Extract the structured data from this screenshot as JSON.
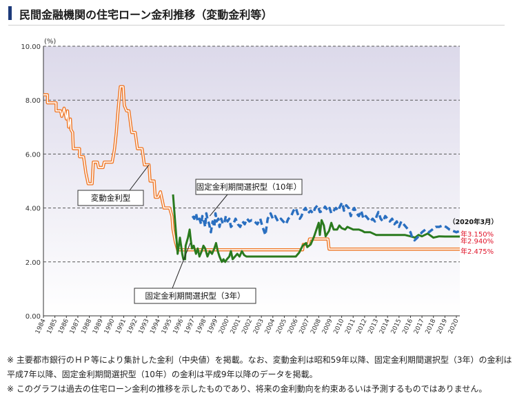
{
  "page": {
    "title": "民間金融機関の住宅ローン金利推移（変動金利等）",
    "notes": [
      "※ 主要都市銀行のＨＰ等により集計した金利（中央値）を掲載。なお、変動金利は昭和59年以降、固定金利期間選択型（3年）の金利は平成7年以降、固定金利期間選択型（10年）の金利は平成9年以降のデータを掲載。",
      "※ このグラフは過去の住宅ローン金利の推移を示したものであり、将来の金利動向を約束あるいは予測するものではありません。"
    ]
  },
  "chart_data": {
    "type": "line",
    "ylabel": "(%)",
    "ylim": [
      0,
      10
    ],
    "yticks": [
      "0.00",
      "2.00",
      "4.00",
      "6.00",
      "8.00",
      "10.00"
    ],
    "xlim": [
      1984,
      2020.3
    ],
    "xticks": [
      "1984",
      "1985",
      "1986",
      "1987",
      "1988",
      "1989",
      "1990",
      "1991",
      "1992",
      "1993",
      "1994",
      "1995",
      "1996",
      "1997",
      "1998",
      "1999",
      "2000",
      "2001",
      "2002",
      "2003",
      "2004",
      "2005",
      "2006",
      "2007",
      "2008",
      "2009",
      "2010",
      "2011",
      "2012",
      "2013",
      "2014",
      "2015",
      "2016",
      "2017",
      "2018",
      "2019",
      "2020"
    ],
    "grid": true,
    "annotation_date": "（2020年3月）",
    "series": [
      {
        "name": "変動金利型",
        "color": "#f07a2a",
        "style": "double",
        "end_label": "年2.475%",
        "points": [
          [
            1984.0,
            8.2
          ],
          [
            1984.35,
            8.2
          ],
          [
            1984.35,
            7.9
          ],
          [
            1985.1,
            7.9
          ],
          [
            1985.1,
            7.6
          ],
          [
            1985.5,
            7.6
          ],
          [
            1985.6,
            7.4
          ],
          [
            1985.8,
            7.7
          ],
          [
            1986.0,
            7.3
          ],
          [
            1986.1,
            7.6
          ],
          [
            1986.2,
            7.0
          ],
          [
            1986.35,
            7.3
          ],
          [
            1986.4,
            6.9
          ],
          [
            1986.55,
            6.8
          ],
          [
            1986.6,
            6.2
          ],
          [
            1987.15,
            6.2
          ],
          [
            1987.15,
            5.9
          ],
          [
            1987.5,
            5.9
          ],
          [
            1987.7,
            5.3
          ],
          [
            1987.9,
            4.9
          ],
          [
            1988.25,
            4.9
          ],
          [
            1988.35,
            5.7
          ],
          [
            1988.7,
            5.7
          ],
          [
            1988.8,
            5.5
          ],
          [
            1989.2,
            5.5
          ],
          [
            1989.3,
            5.7
          ],
          [
            1990.0,
            5.7
          ],
          [
            1990.2,
            6.2
          ],
          [
            1990.35,
            6.8
          ],
          [
            1990.5,
            7.6
          ],
          [
            1990.7,
            8.5
          ],
          [
            1990.95,
            8.5
          ],
          [
            1991.05,
            7.8
          ],
          [
            1991.25,
            7.6
          ],
          [
            1991.45,
            7.6
          ],
          [
            1991.7,
            6.8
          ],
          [
            1992.0,
            6.8
          ],
          [
            1992.2,
            6.2
          ],
          [
            1992.6,
            6.2
          ],
          [
            1992.8,
            5.6
          ],
          [
            1993.2,
            5.6
          ],
          [
            1993.3,
            5.0
          ],
          [
            1993.65,
            5.0
          ],
          [
            1993.75,
            4.4
          ],
          [
            1994.0,
            4.4
          ],
          [
            1994.2,
            4.6
          ],
          [
            1994.5,
            4.0
          ],
          [
            1995.0,
            4.0
          ],
          [
            1995.2,
            3.7
          ],
          [
            1995.3,
            3.2
          ],
          [
            1995.5,
            2.75
          ],
          [
            1995.7,
            2.45
          ],
          [
            2006.6,
            2.45
          ],
          [
            2006.65,
            2.65
          ],
          [
            2007.1,
            2.65
          ],
          [
            2007.2,
            2.85
          ],
          [
            2008.8,
            2.85
          ],
          [
            2008.9,
            2.475
          ],
          [
            2020.3,
            2.475
          ]
        ]
      },
      {
        "name": "固定金利期間選択型（3年）",
        "color": "#2a7a1e",
        "style": "solid",
        "end_label": "年2.940%",
        "points": [
          [
            1995.3,
            4.5
          ],
          [
            1995.35,
            4.2
          ],
          [
            1995.5,
            3.4
          ],
          [
            1995.7,
            2.3
          ],
          [
            1995.9,
            2.9
          ],
          [
            1996.0,
            2.6
          ],
          [
            1996.1,
            2.3
          ],
          [
            1996.2,
            2.1
          ],
          [
            1996.35,
            2.1
          ],
          [
            1996.4,
            2.6
          ],
          [
            1996.6,
            2.9
          ],
          [
            1996.75,
            3.2
          ],
          [
            1996.85,
            2.8
          ],
          [
            1996.95,
            2.5
          ],
          [
            1997.1,
            2.6
          ],
          [
            1997.3,
            2.3
          ],
          [
            1997.45,
            2.5
          ],
          [
            1997.6,
            2.2
          ],
          [
            1997.8,
            2.4
          ],
          [
            1997.95,
            2.6
          ],
          [
            1998.1,
            2.5
          ],
          [
            1998.3,
            2.2
          ],
          [
            1998.5,
            2.4
          ],
          [
            1998.7,
            2.3
          ],
          [
            1998.9,
            2.5
          ],
          [
            1999.05,
            2.7
          ],
          [
            1999.2,
            2.4
          ],
          [
            1999.35,
            2.2
          ],
          [
            1999.55,
            2.0
          ],
          [
            1999.7,
            2.1
          ],
          [
            1999.85,
            2.0
          ],
          [
            2000.0,
            2.1
          ],
          [
            2000.2,
            2.2
          ],
          [
            2000.35,
            2.4
          ],
          [
            2000.5,
            2.1
          ],
          [
            2000.7,
            2.2
          ],
          [
            2000.9,
            2.3
          ],
          [
            2001.1,
            2.2
          ],
          [
            2001.3,
            2.4
          ],
          [
            2001.5,
            2.25
          ],
          [
            2001.7,
            2.2
          ],
          [
            2002.0,
            2.2
          ],
          [
            2002.4,
            2.2
          ],
          [
            2003.0,
            2.2
          ],
          [
            2004.0,
            2.2
          ],
          [
            2005.0,
            2.2
          ],
          [
            2006.0,
            2.2
          ],
          [
            2006.3,
            2.35
          ],
          [
            2006.6,
            2.6
          ],
          [
            2006.9,
            2.7
          ],
          [
            2007.0,
            2.55
          ],
          [
            2007.3,
            2.65
          ],
          [
            2007.6,
            2.95
          ],
          [
            2007.8,
            3.2
          ],
          [
            2008.0,
            3.45
          ],
          [
            2008.1,
            3.0
          ],
          [
            2008.25,
            3.55
          ],
          [
            2008.45,
            3.35
          ],
          [
            2008.6,
            2.95
          ],
          [
            2008.75,
            3.05
          ],
          [
            2008.9,
            3.15
          ],
          [
            2009.1,
            3.45
          ],
          [
            2009.3,
            3.2
          ],
          [
            2009.6,
            3.2
          ],
          [
            2009.8,
            3.35
          ],
          [
            2010.0,
            3.25
          ],
          [
            2010.3,
            3.2
          ],
          [
            2010.5,
            3.3
          ],
          [
            2011.0,
            3.2
          ],
          [
            2011.5,
            3.2
          ],
          [
            2011.8,
            3.15
          ],
          [
            2012.0,
            3.1
          ],
          [
            2012.5,
            3.1
          ],
          [
            2013.0,
            3.0
          ],
          [
            2014.0,
            3.0
          ],
          [
            2015.0,
            3.0
          ],
          [
            2015.5,
            3.0
          ],
          [
            2016.0,
            2.95
          ],
          [
            2016.4,
            2.9
          ],
          [
            2016.7,
            3.0
          ],
          [
            2017.0,
            2.95
          ],
          [
            2017.5,
            3.05
          ],
          [
            2018.0,
            2.9
          ],
          [
            2018.5,
            2.95
          ],
          [
            2019.0,
            2.94
          ],
          [
            2019.5,
            2.94
          ],
          [
            2020.3,
            2.94
          ]
        ]
      },
      {
        "name": "固定金利期間選択型（10年）",
        "color": "#2a6fc0",
        "style": "dashed",
        "end_label": "年3.150%",
        "points": [
          [
            1997.0,
            3.7
          ],
          [
            1997.15,
            3.6
          ],
          [
            1997.3,
            3.8
          ],
          [
            1997.45,
            3.5
          ],
          [
            1997.6,
            3.6
          ],
          [
            1997.75,
            3.4
          ],
          [
            1997.85,
            3.7
          ],
          [
            1997.95,
            3.6
          ],
          [
            1998.1,
            3.3
          ],
          [
            1998.2,
            3.8
          ],
          [
            1998.3,
            3.6
          ],
          [
            1998.45,
            3.4
          ],
          [
            1998.6,
            3.1
          ],
          [
            1998.75,
            3.5
          ],
          [
            1998.9,
            3.3
          ],
          [
            1999.0,
            3.8
          ],
          [
            1999.1,
            3.5
          ],
          [
            1999.25,
            3.6
          ],
          [
            1999.35,
            3.3
          ],
          [
            1999.5,
            3.6
          ],
          [
            1999.65,
            3.4
          ],
          [
            1999.8,
            3.5
          ],
          [
            1999.9,
            3.7
          ],
          [
            2000.05,
            3.5
          ],
          [
            2000.2,
            3.6
          ],
          [
            2000.35,
            3.3
          ],
          [
            2000.55,
            3.4
          ],
          [
            2000.75,
            3.6
          ],
          [
            2000.95,
            3.4
          ],
          [
            2001.15,
            3.3
          ],
          [
            2001.35,
            3.5
          ],
          [
            2001.55,
            3.4
          ],
          [
            2001.75,
            3.6
          ],
          [
            2001.95,
            3.5
          ],
          [
            2002.15,
            3.55
          ],
          [
            2002.4,
            3.5
          ],
          [
            2002.65,
            3.4
          ],
          [
            2002.9,
            3.6
          ],
          [
            2003.1,
            3.3
          ],
          [
            2003.35,
            3.0
          ],
          [
            2003.55,
            3.6
          ],
          [
            2003.8,
            3.8
          ],
          [
            2004.0,
            3.6
          ],
          [
            2004.2,
            3.7
          ],
          [
            2004.45,
            3.5
          ],
          [
            2004.7,
            3.6
          ],
          [
            2004.9,
            3.5
          ],
          [
            2005.15,
            3.4
          ],
          [
            2005.35,
            3.6
          ],
          [
            2005.6,
            3.7
          ],
          [
            2005.8,
            3.9
          ],
          [
            2006.0,
            4.0
          ],
          [
            2006.15,
            3.8
          ],
          [
            2006.35,
            3.6
          ],
          [
            2006.5,
            3.7
          ],
          [
            2006.65,
            3.9
          ],
          [
            2006.85,
            4.0
          ],
          [
            2007.05,
            3.8
          ],
          [
            2007.3,
            3.9
          ],
          [
            2007.5,
            3.8
          ],
          [
            2007.7,
            4.0
          ],
          [
            2007.9,
            4.1
          ],
          [
            2008.1,
            3.85
          ],
          [
            2008.35,
            3.9
          ],
          [
            2008.55,
            4.05
          ],
          [
            2008.8,
            3.9
          ],
          [
            2008.95,
            4.0
          ],
          [
            2009.1,
            3.8
          ],
          [
            2009.3,
            3.9
          ],
          [
            2009.5,
            4.0
          ],
          [
            2009.7,
            3.9
          ],
          [
            2009.9,
            4.1
          ],
          [
            2010.05,
            4.2
          ],
          [
            2010.2,
            3.9
          ],
          [
            2010.4,
            4.1
          ],
          [
            2010.6,
            4.0
          ],
          [
            2010.8,
            3.7
          ],
          [
            2010.95,
            3.9
          ],
          [
            2011.1,
            4.0
          ],
          [
            2011.3,
            3.8
          ],
          [
            2011.5,
            3.7
          ],
          [
            2011.7,
            3.9
          ],
          [
            2011.9,
            3.6
          ],
          [
            2012.1,
            3.7
          ],
          [
            2012.3,
            3.6
          ],
          [
            2012.5,
            3.5
          ],
          [
            2012.7,
            3.6
          ],
          [
            2012.9,
            3.5
          ],
          [
            2013.05,
            3.7
          ],
          [
            2013.2,
            3.85
          ],
          [
            2013.4,
            3.6
          ],
          [
            2013.6,
            3.5
          ],
          [
            2013.8,
            3.7
          ],
          [
            2014.0,
            3.6
          ],
          [
            2014.2,
            3.5
          ],
          [
            2014.4,
            3.6
          ],
          [
            2014.6,
            3.4
          ],
          [
            2014.8,
            3.5
          ],
          [
            2015.0,
            3.3
          ],
          [
            2015.2,
            3.5
          ],
          [
            2015.4,
            3.4
          ],
          [
            2015.6,
            3.3
          ],
          [
            2015.8,
            3.2
          ],
          [
            2016.0,
            3.1
          ],
          [
            2016.15,
            2.9
          ],
          [
            2016.35,
            2.8
          ],
          [
            2016.6,
            2.9
          ],
          [
            2016.8,
            3.0
          ],
          [
            2017.0,
            3.1
          ],
          [
            2017.3,
            3.2
          ],
          [
            2017.6,
            3.1
          ],
          [
            2017.9,
            3.2
          ],
          [
            2018.2,
            3.3
          ],
          [
            2018.5,
            3.3
          ],
          [
            2018.8,
            3.35
          ],
          [
            2019.1,
            3.3
          ],
          [
            2019.4,
            3.2
          ],
          [
            2019.7,
            3.15
          ],
          [
            2020.0,
            3.1
          ],
          [
            2020.3,
            3.15
          ]
        ]
      }
    ]
  }
}
